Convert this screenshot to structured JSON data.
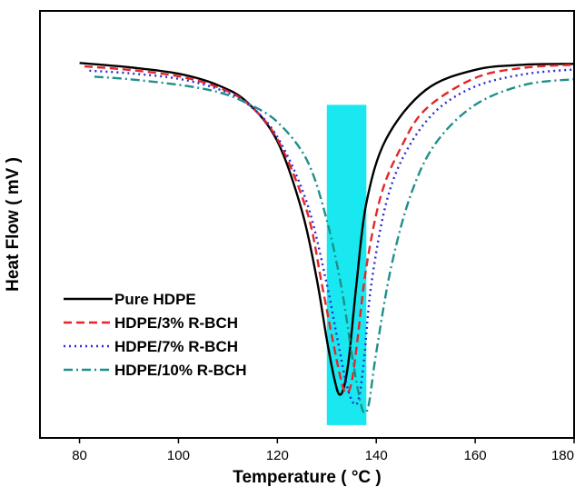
{
  "chart_data": {
    "type": "line",
    "xlabel": "Temperature ( °C )",
    "ylabel": "Heat Flow ( mV )",
    "xlim": [
      72,
      180
    ],
    "ylim": [
      0,
      100
    ],
    "xticks": [
      "80",
      "100",
      "120",
      "140",
      "160",
      "180"
    ],
    "yticks_shown": false,
    "grid": false,
    "legend": {
      "position": "bottom-left"
    },
    "highlight": {
      "x_range": [
        130,
        138
      ],
      "y_range": [
        3,
        78
      ],
      "color": "#19e8f0"
    },
    "series": [
      {
        "name": "Pure HDPE",
        "color": "#000000",
        "dash": "solid",
        "x": [
          80,
          90,
          100,
          108,
          114,
          120,
          125,
          128,
          130,
          131.5,
          132.5,
          133.5,
          134.5,
          136,
          138,
          142,
          150,
          160,
          170,
          180
        ],
        "y": [
          87.8,
          86.8,
          85.3,
          82.6,
          78.5,
          69.5,
          53,
          37,
          23,
          14,
          10.2,
          12,
          19,
          36,
          55,
          70,
          81.5,
          86.2,
          87.4,
          87.6
        ]
      },
      {
        "name": "HDPE/3% R-BCH",
        "color": "#e5262a",
        "dash": "dashed",
        "x": [
          81,
          90,
          100,
          108,
          114,
          120,
          126,
          129,
          131,
          133,
          134,
          135,
          136,
          138,
          141,
          145,
          150,
          160,
          170,
          180
        ],
        "y": [
          87,
          86.2,
          84.7,
          82.1,
          78.3,
          70,
          53,
          36,
          24,
          13,
          10.5,
          13,
          21,
          40,
          57,
          68,
          77,
          84.3,
          86.7,
          87.4
        ]
      },
      {
        "name": "HDPE/7% R-BCH",
        "color": "#2b2bd4",
        "dash": "dotted",
        "x": [
          82,
          90,
          100,
          108,
          114,
          120,
          126,
          130,
          132,
          134,
          135.5,
          136.5,
          137.5,
          139,
          142,
          146,
          152,
          160,
          170,
          180
        ],
        "y": [
          86,
          85.4,
          84.1,
          81.7,
          78.2,
          70.5,
          55,
          36,
          24,
          12.5,
          8,
          9.5,
          18,
          36,
          55,
          67,
          76.5,
          82.3,
          85.2,
          86.3
        ]
      },
      {
        "name": "HDPE/10% R-BCH",
        "color": "#1f8f8a",
        "dash": "dashdot",
        "x": [
          83,
          90,
          100,
          108,
          114,
          120,
          126,
          130,
          133,
          135,
          136.5,
          137.5,
          138.5,
          140,
          143,
          147,
          152,
          160,
          170,
          180
        ],
        "y": [
          84.6,
          84,
          82.7,
          81,
          78.3,
          74,
          65,
          51,
          35,
          20,
          10,
          6,
          8,
          20,
          40,
          57,
          69,
          78,
          82.7,
          84
        ]
      }
    ]
  }
}
